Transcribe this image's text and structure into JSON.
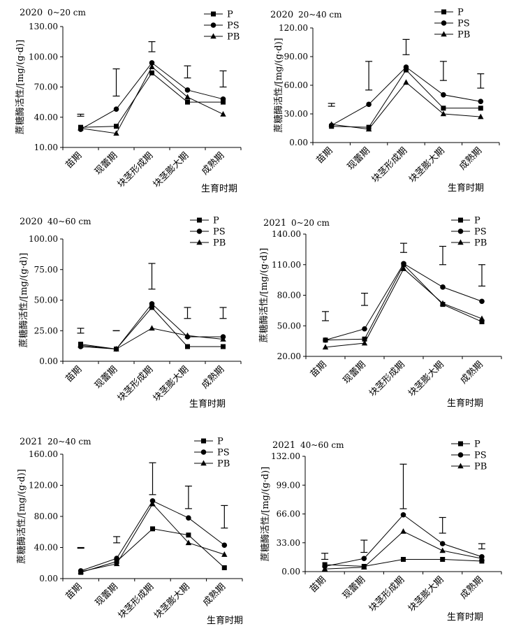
{
  "stages": [
    "苗期",
    "现蕾期",
    "块茎形成期",
    "块茎膨大期",
    "成熟期"
  ],
  "y_label": "蔗糖酶活性/[mg/(g·d)]",
  "x_title": "生育时期",
  "legend": [
    "P",
    "PS",
    "PB"
  ],
  "chart_data": [
    {
      "type": "line",
      "year": "2020",
      "depth": "0~20 cm",
      "ylim": [
        10,
        130
      ],
      "yticks": [
        "10.00",
        "40.00",
        "70.00",
        "100.00",
        "130.00"
      ],
      "series": [
        {
          "name": "P",
          "values": [
            30,
            31,
            84,
            55,
            55
          ]
        },
        {
          "name": "PS",
          "values": [
            28,
            48,
            94,
            67,
            58
          ]
        },
        {
          "name": "PB",
          "values": [
            29,
            24,
            90,
            60,
            43
          ]
        }
      ],
      "error_bars": [
        [
          41,
          43
        ],
        [
          61,
          88
        ],
        [
          105,
          115
        ],
        [
          79,
          91
        ],
        [
          70,
          86
        ]
      ]
    },
    {
      "type": "line",
      "year": "2020",
      "depth": "20~40 cm",
      "ylim": [
        0,
        120
      ],
      "yticks": [
        "0.00",
        "30.00",
        "60.00",
        "90.00",
        "120.00"
      ],
      "series": [
        {
          "name": "P",
          "values": [
            17,
            16,
            76,
            36,
            36
          ]
        },
        {
          "name": "PS",
          "values": [
            18,
            40,
            79,
            50,
            43
          ]
        },
        {
          "name": "PB",
          "values": [
            19,
            14,
            63,
            30,
            27
          ]
        }
      ],
      "error_bars": [
        [
          38,
          41
        ],
        [
          55,
          85
        ],
        [
          92,
          108
        ],
        [
          65,
          85
        ],
        [
          57,
          72
        ]
      ]
    },
    {
      "type": "line",
      "year": "2020",
      "depth": "40~60 cm",
      "ylim": [
        0,
        100
      ],
      "yticks": [
        "0.00",
        "25.00",
        "50.00",
        "75.00",
        "100.00"
      ],
      "series": [
        {
          "name": "P",
          "values": [
            14,
            10,
            44,
            12,
            12
          ]
        },
        {
          "name": "PS",
          "values": [
            12,
            10,
            47,
            20,
            20
          ]
        },
        {
          "name": "PB",
          "values": [
            13,
            10,
            27,
            21,
            18
          ]
        }
      ],
      "error_bars": [
        [
          23,
          27
        ],
        [
          25,
          25
        ],
        [
          59,
          80
        ],
        [
          35,
          44
        ],
        [
          35,
          44
        ]
      ]
    },
    {
      "type": "line",
      "year": "2021",
      "depth": "0~20 cm",
      "ylim": [
        20,
        140
      ],
      "yticks": [
        "20.00",
        "50.00",
        "80.00",
        "110.00",
        "140.00"
      ],
      "series": [
        {
          "name": "P",
          "values": [
            36,
            37,
            110,
            71,
            54
          ]
        },
        {
          "name": "PS",
          "values": [
            36,
            47,
            111,
            88,
            74
          ]
        },
        {
          "name": "PB",
          "values": [
            29,
            33,
            106,
            72,
            57
          ]
        }
      ],
      "error_bars": [
        [
          55,
          64
        ],
        [
          70,
          82
        ],
        [
          122,
          131
        ],
        [
          110,
          128
        ],
        [
          89,
          110
        ]
      ]
    },
    {
      "type": "line",
      "year": "2021",
      "depth": "20~40 cm",
      "ylim": [
        0,
        160
      ],
      "yticks": [
        "0.00",
        "40.00",
        "80.00",
        "120.00",
        "160.00"
      ],
      "series": [
        {
          "name": "P",
          "values": [
            8,
            22,
            64,
            56,
            14
          ]
        },
        {
          "name": "PS",
          "values": [
            10,
            26,
            100,
            78,
            43
          ]
        },
        {
          "name": "PB",
          "values": [
            9,
            19,
            96,
            46,
            31
          ]
        }
      ],
      "error_bars": [
        [
          39,
          40
        ],
        [
          46,
          54
        ],
        [
          108,
          149
        ],
        [
          90,
          119
        ],
        [
          65,
          94
        ]
      ]
    },
    {
      "type": "line",
      "year": "2021",
      "depth": "40~60 cm",
      "ylim": [
        0,
        132
      ],
      "yticks": [
        "0.00",
        "33.00",
        "66.00",
        "99.00",
        "132.00"
      ],
      "series": [
        {
          "name": "P",
          "values": [
            8,
            6,
            14,
            14,
            12
          ]
        },
        {
          "name": "PS",
          "values": [
            6,
            15,
            65,
            32,
            17
          ]
        },
        {
          "name": "PB",
          "values": [
            3,
            5,
            46,
            24,
            15
          ]
        }
      ],
      "error_bars": [
        [
          14,
          21
        ],
        [
          22,
          36
        ],
        [
          72,
          123
        ],
        [
          44,
          62
        ],
        [
          26,
          32
        ]
      ]
    }
  ]
}
